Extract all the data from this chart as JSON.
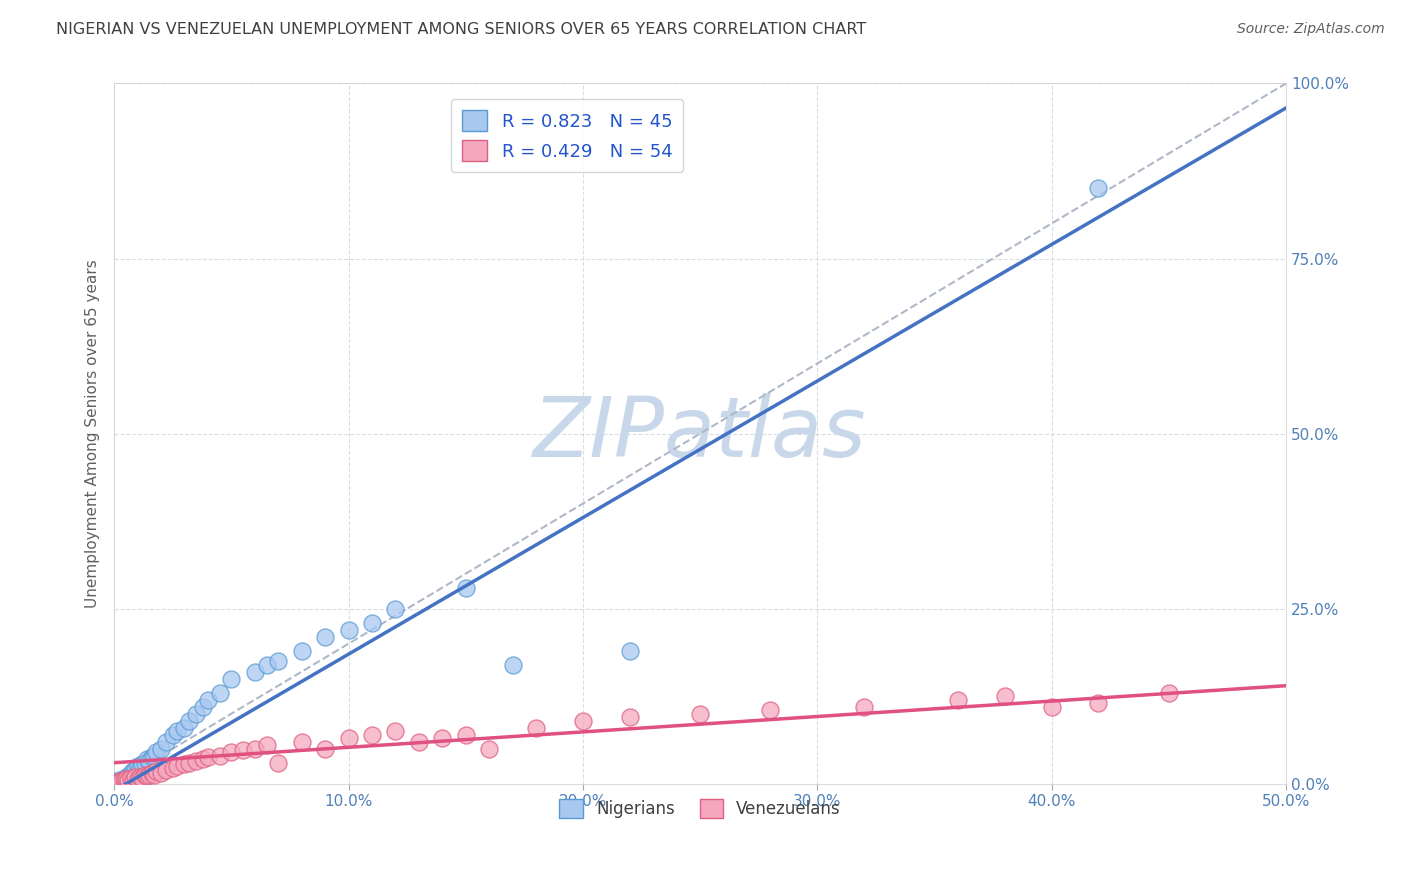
{
  "title": "NIGERIAN VS VENEZUELAN UNEMPLOYMENT AMONG SENIORS OVER 65 YEARS CORRELATION CHART",
  "source": "Source: ZipAtlas.com",
  "ylabel": "Unemployment Among Seniors over 65 years",
  "xlim": [
    0.0,
    0.5
  ],
  "ylim": [
    0.0,
    1.0
  ],
  "xticks": [
    0.0,
    0.1,
    0.2,
    0.3,
    0.4,
    0.5
  ],
  "xticklabels": [
    "0.0%",
    "10.0%",
    "20.0%",
    "30.0%",
    "40.0%",
    "50.0%"
  ],
  "yticks": [
    0.0,
    0.25,
    0.5,
    0.75,
    1.0
  ],
  "yticklabels": [
    "0.0%",
    "25.0%",
    "50.0%",
    "75.0%",
    "100.0%"
  ],
  "nigerian_R": 0.823,
  "nigerian_N": 45,
  "venezuelan_R": 0.429,
  "venezuelan_N": 54,
  "nigerian_color": "#a8c8f0",
  "nigerian_edge": "#5b9bd5",
  "venezuelan_color": "#f4a8c0",
  "venezuelan_edge": "#e06080",
  "line_nigerian": "#4472c4",
  "line_venezuelan": "#e05080",
  "diagonal_color": "#b0b8c8",
  "watermark": "ZIPatlas",
  "watermark_color": "#c8d8ea",
  "background_color": "#ffffff",
  "grid_color": "#c8d0dc",
  "title_color": "#404040",
  "axis_label_color": "#606060",
  "tick_label_color": "#5080b8",
  "nig_slope": 1.95,
  "nig_intercept": -0.01,
  "ven_slope": 0.22,
  "ven_intercept": 0.03,
  "nigerian_points_x": [
    0.002,
    0.003,
    0.004,
    0.005,
    0.005,
    0.006,
    0.006,
    0.007,
    0.007,
    0.008,
    0.008,
    0.009,
    0.01,
    0.01,
    0.011,
    0.012,
    0.013,
    0.014,
    0.015,
    0.016,
    0.017,
    0.018,
    0.02,
    0.022,
    0.025,
    0.027,
    0.03,
    0.032,
    0.035,
    0.038,
    0.04,
    0.045,
    0.05,
    0.06,
    0.065,
    0.07,
    0.08,
    0.09,
    0.1,
    0.11,
    0.12,
    0.15,
    0.17,
    0.22,
    0.42
  ],
  "nigerian_points_y": [
    0.005,
    0.003,
    0.006,
    0.008,
    0.01,
    0.004,
    0.009,
    0.012,
    0.015,
    0.01,
    0.018,
    0.02,
    0.015,
    0.025,
    0.022,
    0.028,
    0.03,
    0.035,
    0.032,
    0.038,
    0.04,
    0.045,
    0.05,
    0.06,
    0.07,
    0.075,
    0.08,
    0.09,
    0.1,
    0.11,
    0.12,
    0.13,
    0.15,
    0.16,
    0.17,
    0.175,
    0.19,
    0.21,
    0.22,
    0.23,
    0.25,
    0.28,
    0.17,
    0.19,
    0.85
  ],
  "venezuelan_points_x": [
    0.001,
    0.002,
    0.003,
    0.004,
    0.005,
    0.005,
    0.006,
    0.007,
    0.008,
    0.009,
    0.01,
    0.011,
    0.012,
    0.013,
    0.014,
    0.015,
    0.016,
    0.017,
    0.018,
    0.02,
    0.022,
    0.025,
    0.027,
    0.03,
    0.032,
    0.035,
    0.038,
    0.04,
    0.045,
    0.05,
    0.055,
    0.06,
    0.065,
    0.07,
    0.08,
    0.09,
    0.1,
    0.11,
    0.12,
    0.13,
    0.14,
    0.15,
    0.16,
    0.18,
    0.2,
    0.22,
    0.25,
    0.28,
    0.32,
    0.36,
    0.38,
    0.4,
    0.42,
    0.45
  ],
  "venezuelan_points_y": [
    0.003,
    0.002,
    0.004,
    0.005,
    0.003,
    0.007,
    0.006,
    0.008,
    0.005,
    0.009,
    0.007,
    0.01,
    0.008,
    0.012,
    0.011,
    0.013,
    0.015,
    0.012,
    0.018,
    0.015,
    0.02,
    0.022,
    0.025,
    0.028,
    0.03,
    0.032,
    0.035,
    0.038,
    0.04,
    0.045,
    0.048,
    0.05,
    0.055,
    0.03,
    0.06,
    0.05,
    0.065,
    0.07,
    0.075,
    0.06,
    0.065,
    0.07,
    0.05,
    0.08,
    0.09,
    0.095,
    0.1,
    0.105,
    0.11,
    0.12,
    0.125,
    0.11,
    0.115,
    0.13
  ]
}
